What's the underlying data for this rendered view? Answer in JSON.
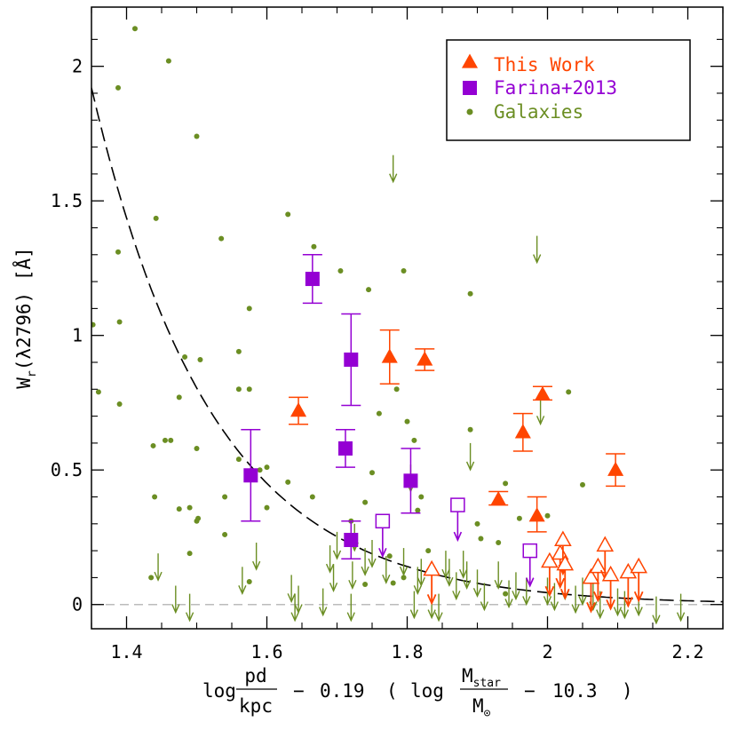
{
  "chart_data": {
    "type": "scatter",
    "xlabel_parts": {
      "log1": "log",
      "frac1_num": "pd",
      "frac1_den": "kpc",
      "minus1": "−",
      "coef": "0.19",
      "paren_open": "(",
      "log2": "log",
      "frac2_num": "M",
      "frac2_num_sub": "star",
      "frac2_den": "M",
      "frac2_den_sub": "⊙",
      "minus2": "−",
      "offset": "10.3",
      "paren_close": ")"
    },
    "ylabel": "W",
    "ylabel_sub": "r",
    "ylabel_rest": "(λ2796) [Å]",
    "xlim": [
      1.35,
      2.25
    ],
    "ylim": [
      -0.09,
      2.22
    ],
    "x_ticks": [
      1.4,
      1.6,
      1.8,
      2.0,
      2.2
    ],
    "x_tick_labels": [
      "1.4",
      "1.6",
      "1.8",
      "2",
      "2.2"
    ],
    "y_ticks": [
      0,
      0.5,
      1.0,
      1.5,
      2.0
    ],
    "y_tick_labels": [
      "0",
      "0.5",
      "1",
      "1.5",
      "2"
    ],
    "legend_position": "top-right",
    "colors": {
      "this_work": "#ff4500",
      "farina": "#9400d3",
      "galaxies": "#6b8e23",
      "fit": "#000000",
      "zero_line": "#bbbbbb"
    },
    "series": [
      {
        "name": "This Work",
        "marker": "triangle",
        "detections": [
          {
            "x": 1.645,
            "y": 0.72,
            "lo": 0.67,
            "hi": 0.77
          },
          {
            "x": 1.775,
            "y": 0.92,
            "lo": 0.82,
            "hi": 1.02
          },
          {
            "x": 1.825,
            "y": 0.91,
            "lo": 0.87,
            "hi": 0.95
          },
          {
            "x": 1.93,
            "y": 0.39,
            "lo": 0.37,
            "hi": 0.42
          },
          {
            "x": 1.965,
            "y": 0.64,
            "lo": 0.57,
            "hi": 0.71
          },
          {
            "x": 1.985,
            "y": 0.33,
            "lo": 0.27,
            "hi": 0.4
          },
          {
            "x": 1.993,
            "y": 0.78,
            "lo": 0.76,
            "hi": 0.81
          },
          {
            "x": 2.097,
            "y": 0.5,
            "lo": 0.44,
            "hi": 0.56
          }
        ],
        "upper_limits": [
          {
            "x": 1.835,
            "y": 0.13
          },
          {
            "x": 2.003,
            "y": 0.16
          },
          {
            "x": 2.018,
            "y": 0.19
          },
          {
            "x": 2.022,
            "y": 0.24
          },
          {
            "x": 2.025,
            "y": 0.15
          },
          {
            "x": 2.062,
            "y": 0.1
          },
          {
            "x": 2.072,
            "y": 0.14
          },
          {
            "x": 2.082,
            "y": 0.22
          },
          {
            "x": 2.09,
            "y": 0.11
          },
          {
            "x": 2.115,
            "y": 0.12
          },
          {
            "x": 2.13,
            "y": 0.14
          }
        ]
      },
      {
        "name": "Farina+2013",
        "marker": "square",
        "detections": [
          {
            "x": 1.577,
            "y": 0.48,
            "lo": 0.31,
            "hi": 0.65
          },
          {
            "x": 1.665,
            "y": 1.21,
            "lo": 1.12,
            "hi": 1.3
          },
          {
            "x": 1.712,
            "y": 0.58,
            "lo": 0.51,
            "hi": 0.65
          },
          {
            "x": 1.72,
            "y": 0.91,
            "lo": 0.74,
            "hi": 1.08
          },
          {
            "x": 1.72,
            "y": 0.24,
            "lo": 0.17,
            "hi": 0.31
          },
          {
            "x": 1.805,
            "y": 0.46,
            "lo": 0.34,
            "hi": 0.58
          }
        ],
        "upper_limits": [
          {
            "x": 1.765,
            "y": 0.31
          },
          {
            "x": 1.872,
            "y": 0.37
          },
          {
            "x": 1.975,
            "y": 0.2
          }
        ]
      },
      {
        "name": "Galaxies",
        "marker": "dot",
        "points": [
          {
            "x": 1.412,
            "y": 2.14
          },
          {
            "x": 1.46,
            "y": 2.02
          },
          {
            "x": 1.388,
            "y": 1.92
          },
          {
            "x": 1.5,
            "y": 1.74
          },
          {
            "x": 1.442,
            "y": 1.435
          },
          {
            "x": 1.388,
            "y": 1.31
          },
          {
            "x": 1.535,
            "y": 1.36
          },
          {
            "x": 1.63,
            "y": 1.45
          },
          {
            "x": 1.667,
            "y": 1.33
          },
          {
            "x": 1.705,
            "y": 1.24
          },
          {
            "x": 1.795,
            "y": 1.24
          },
          {
            "x": 1.89,
            "y": 1.155
          },
          {
            "x": 1.745,
            "y": 1.17
          },
          {
            "x": 1.575,
            "y": 1.1
          },
          {
            "x": 1.39,
            "y": 1.05
          },
          {
            "x": 1.352,
            "y": 1.04
          },
          {
            "x": 1.36,
            "y": 0.79
          },
          {
            "x": 1.39,
            "y": 0.745
          },
          {
            "x": 1.475,
            "y": 0.77
          },
          {
            "x": 1.483,
            "y": 0.92
          },
          {
            "x": 1.505,
            "y": 0.91
          },
          {
            "x": 1.56,
            "y": 0.94
          },
          {
            "x": 1.56,
            "y": 0.8
          },
          {
            "x": 1.575,
            "y": 0.8
          },
          {
            "x": 1.438,
            "y": 0.59
          },
          {
            "x": 1.455,
            "y": 0.61
          },
          {
            "x": 1.463,
            "y": 0.61
          },
          {
            "x": 1.5,
            "y": 0.58
          },
          {
            "x": 1.56,
            "y": 0.54
          },
          {
            "x": 1.59,
            "y": 0.5
          },
          {
            "x": 1.6,
            "y": 0.51
          },
          {
            "x": 1.6,
            "y": 0.36
          },
          {
            "x": 1.63,
            "y": 0.455
          },
          {
            "x": 1.665,
            "y": 0.4
          },
          {
            "x": 1.74,
            "y": 0.38
          },
          {
            "x": 1.75,
            "y": 0.49
          },
          {
            "x": 1.76,
            "y": 0.71
          },
          {
            "x": 1.785,
            "y": 0.8
          },
          {
            "x": 1.8,
            "y": 0.68
          },
          {
            "x": 1.81,
            "y": 0.61
          },
          {
            "x": 1.82,
            "y": 0.4
          },
          {
            "x": 1.815,
            "y": 0.35
          },
          {
            "x": 1.89,
            "y": 0.65
          },
          {
            "x": 1.9,
            "y": 0.3
          },
          {
            "x": 1.905,
            "y": 0.245
          },
          {
            "x": 1.94,
            "y": 0.45
          },
          {
            "x": 1.93,
            "y": 0.23
          },
          {
            "x": 1.96,
            "y": 0.32
          },
          {
            "x": 2.0,
            "y": 0.33
          },
          {
            "x": 2.03,
            "y": 0.79
          },
          {
            "x": 2.05,
            "y": 0.445
          },
          {
            "x": 1.54,
            "y": 0.4
          },
          {
            "x": 1.54,
            "y": 0.26
          },
          {
            "x": 1.49,
            "y": 0.36
          },
          {
            "x": 1.5,
            "y": 0.31
          },
          {
            "x": 1.502,
            "y": 0.32
          },
          {
            "x": 1.475,
            "y": 0.355
          },
          {
            "x": 1.44,
            "y": 0.4
          },
          {
            "x": 1.49,
            "y": 0.19
          },
          {
            "x": 1.435,
            "y": 0.1
          },
          {
            "x": 1.575,
            "y": 0.085
          },
          {
            "x": 1.775,
            "y": 0.18
          },
          {
            "x": 1.78,
            "y": 0.08
          },
          {
            "x": 1.795,
            "y": 0.1
          },
          {
            "x": 1.74,
            "y": 0.075
          },
          {
            "x": 1.72,
            "y": 0.31
          },
          {
            "x": 1.83,
            "y": 0.2
          },
          {
            "x": 1.94,
            "y": 0.04
          }
        ],
        "upper_limits": [
          {
            "x": 1.78,
            "y": 1.67
          },
          {
            "x": 1.985,
            "y": 1.37
          },
          {
            "x": 1.99,
            "y": 0.77
          },
          {
            "x": 1.89,
            "y": 0.6
          },
          {
            "x": 1.805,
            "y": 0.52
          },
          {
            "x": 1.855,
            "y": 0.2
          },
          {
            "x": 1.445,
            "y": 0.19
          },
          {
            "x": 1.565,
            "y": 0.14
          },
          {
            "x": 1.585,
            "y": 0.23
          },
          {
            "x": 1.635,
            "y": 0.11
          },
          {
            "x": 1.69,
            "y": 0.22
          },
          {
            "x": 1.695,
            "y": 0.15
          },
          {
            "x": 1.7,
            "y": 0.27
          },
          {
            "x": 1.722,
            "y": 0.16
          },
          {
            "x": 1.725,
            "y": 0.3
          },
          {
            "x": 1.74,
            "y": 0.21
          },
          {
            "x": 1.75,
            "y": 0.24
          },
          {
            "x": 1.77,
            "y": 0.18
          },
          {
            "x": 1.795,
            "y": 0.21
          },
          {
            "x": 1.815,
            "y": 0.14
          },
          {
            "x": 1.82,
            "y": 0.17
          },
          {
            "x": 1.835,
            "y": 0.05
          },
          {
            "x": 1.86,
            "y": 0.17
          },
          {
            "x": 1.87,
            "y": 0.12
          },
          {
            "x": 1.88,
            "y": 0.2
          },
          {
            "x": 1.885,
            "y": 0.16
          },
          {
            "x": 1.9,
            "y": 0.13
          },
          {
            "x": 1.91,
            "y": 0.08
          },
          {
            "x": 1.93,
            "y": 0.16
          },
          {
            "x": 1.945,
            "y": 0.09
          },
          {
            "x": 1.955,
            "y": 0.12
          },
          {
            "x": 1.97,
            "y": 0.1
          },
          {
            "x": 2.0,
            "y": 0.1
          },
          {
            "x": 2.01,
            "y": 0.08
          },
          {
            "x": 2.025,
            "y": 0.12
          },
          {
            "x": 2.04,
            "y": 0.07
          },
          {
            "x": 2.05,
            "y": 0.1
          },
          {
            "x": 2.065,
            "y": 0.08
          },
          {
            "x": 2.075,
            "y": 0.05
          },
          {
            "x": 2.1,
            "y": 0.06
          },
          {
            "x": 2.11,
            "y": 0.05
          },
          {
            "x": 2.13,
            "y": 0.06
          },
          {
            "x": 2.155,
            "y": 0.03
          },
          {
            "x": 2.19,
            "y": 0.04
          },
          {
            "x": 1.47,
            "y": 0.07
          },
          {
            "x": 1.49,
            "y": 0.04
          },
          {
            "x": 1.64,
            "y": 0.04
          },
          {
            "x": 1.645,
            "y": 0.07
          },
          {
            "x": 1.68,
            "y": 0.06
          },
          {
            "x": 1.72,
            "y": 0.04
          },
          {
            "x": 1.81,
            "y": 0.05
          },
          {
            "x": 1.845,
            "y": 0.04
          }
        ]
      }
    ],
    "fit_curve": {
      "A": 1.92,
      "b": 5.8,
      "x0": 1.35
    },
    "zero_line": 0
  }
}
